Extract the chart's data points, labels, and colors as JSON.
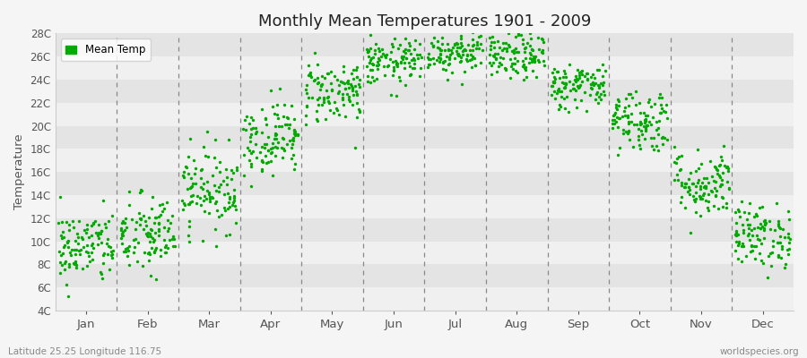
{
  "title": "Monthly Mean Temperatures 1901 - 2009",
  "ylabel": "Temperature",
  "ytick_labels": [
    "4C",
    "6C",
    "8C",
    "10C",
    "12C",
    "14C",
    "16C",
    "18C",
    "20C",
    "22C",
    "24C",
    "26C",
    "28C"
  ],
  "ytick_values": [
    4,
    6,
    8,
    10,
    12,
    14,
    16,
    18,
    20,
    22,
    24,
    26,
    28
  ],
  "ylim": [
    4,
    28
  ],
  "xlim": [
    0,
    12
  ],
  "xtick_positions": [
    0.5,
    1.5,
    2.5,
    3.5,
    4.5,
    5.5,
    6.5,
    7.5,
    8.5,
    9.5,
    10.5,
    11.5
  ],
  "xtick_labels": [
    "Jan",
    "Feb",
    "Mar",
    "Apr",
    "May",
    "Jun",
    "Jul",
    "Aug",
    "Sep",
    "Oct",
    "Nov",
    "Dec"
  ],
  "vline_positions": [
    1,
    2,
    3,
    4,
    5,
    6,
    7,
    8,
    9,
    10,
    11
  ],
  "dot_color": "#00aa00",
  "dot_size": 6,
  "background_color": "#f5f5f5",
  "plot_bg_color_light": "#f0f0f0",
  "plot_bg_color_dark": "#e4e4e4",
  "legend_label": "Mean Temp",
  "subtitle_left": "Latitude 25.25 Longitude 116.75",
  "subtitle_right": "worldspecies.org",
  "monthly_means": [
    9.5,
    10.5,
    14.5,
    19.0,
    23.0,
    25.5,
    26.5,
    26.0,
    23.5,
    20.5,
    15.0,
    10.5
  ],
  "monthly_stds": [
    1.6,
    1.8,
    1.8,
    1.6,
    1.4,
    1.0,
    1.0,
    1.0,
    1.0,
    1.4,
    1.5,
    1.4
  ],
  "n_years": 109,
  "seed": 42
}
